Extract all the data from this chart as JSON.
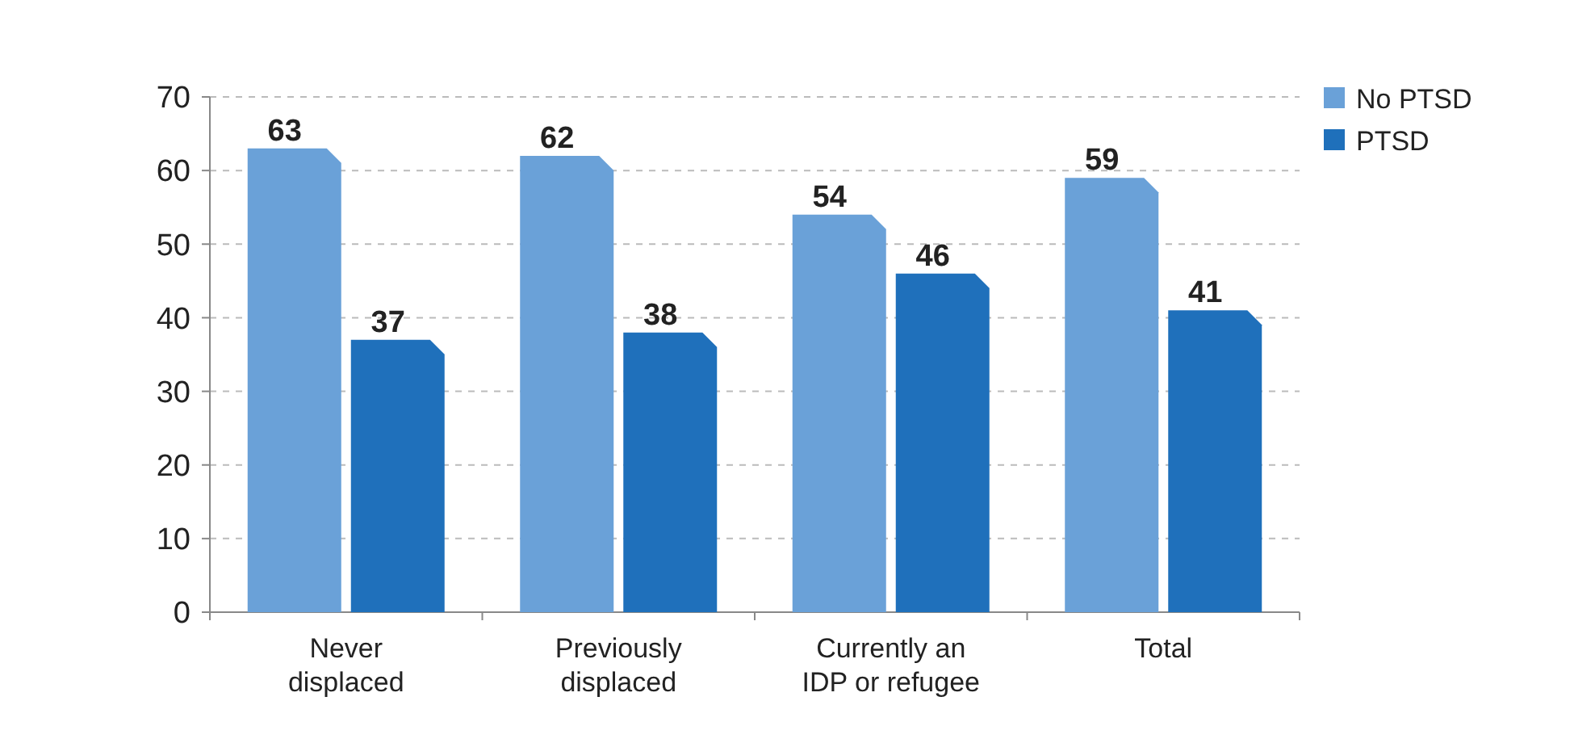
{
  "chart_data": {
    "type": "bar",
    "categories": [
      "Never displaced",
      "Previously displaced",
      "Currently an IDP or refugee",
      "Total"
    ],
    "series": [
      {
        "name": "No PTSD",
        "color": "#6aa1d8",
        "values": [
          63,
          62,
          54,
          59
        ]
      },
      {
        "name": "PTSD",
        "color": "#1f70bb",
        "values": [
          37,
          38,
          46,
          41
        ]
      }
    ],
    "ylim": [
      0,
      70
    ],
    "yticks": [
      0,
      10,
      20,
      30,
      40,
      50,
      60,
      70
    ],
    "grid": "y",
    "legend": "top right",
    "data_labels": true
  }
}
